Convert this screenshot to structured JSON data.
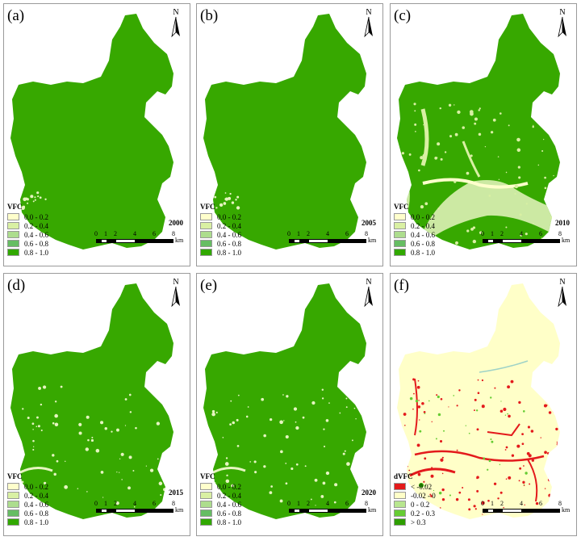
{
  "panels": [
    {
      "label": "(a)",
      "year": "2000",
      "legend_title": "VFC",
      "variant": "vfc-low"
    },
    {
      "label": "(b)",
      "year": "2005",
      "legend_title": "VFC",
      "variant": "vfc-low"
    },
    {
      "label": "(c)",
      "year": "2010",
      "legend_title": "VFC",
      "variant": "vfc-high"
    },
    {
      "label": "(d)",
      "year": "2015",
      "legend_title": "VFC",
      "variant": "vfc-mid"
    },
    {
      "label": "(e)",
      "year": "2020",
      "legend_title": "VFC",
      "variant": "vfc-mid"
    },
    {
      "label": "(f)",
      "year": "",
      "legend_title": "dVFC",
      "variant": "dvfc"
    }
  ],
  "vfc_legend": [
    {
      "label": "0.0 - 0.2",
      "color": "#ffffcc"
    },
    {
      "label": "0.2 - 0.4",
      "color": "#d9f0a3"
    },
    {
      "label": "0.4 - 0.6",
      "color": "#addd8e"
    },
    {
      "label": "0.6 - 0.8",
      "color": "#66bd63"
    },
    {
      "label": "0.8 - 1.0",
      "color": "#31a800"
    }
  ],
  "dvfc_legend": [
    {
      "label": "< -0.02",
      "color": "#e31a1c"
    },
    {
      "label": "-0.02 - 0",
      "color": "#ffffc8"
    },
    {
      "label": "0 - 0.2",
      "color": "#b8e68f"
    },
    {
      "label": "0.2 - 0.3",
      "color": "#66cc33"
    },
    {
      "label": "> 0.3",
      "color": "#2e9e00"
    }
  ],
  "scale": {
    "ticks": [
      "0",
      "1",
      "2",
      "4",
      "6",
      "8"
    ],
    "unit": "km"
  },
  "north_label": "N",
  "colors": {
    "forest": "#37a800",
    "background_dvfc": "#ffffc8",
    "decrease": "#e31a1c",
    "increase": "#66cc33",
    "low_vfc": "#e6f5c0"
  }
}
